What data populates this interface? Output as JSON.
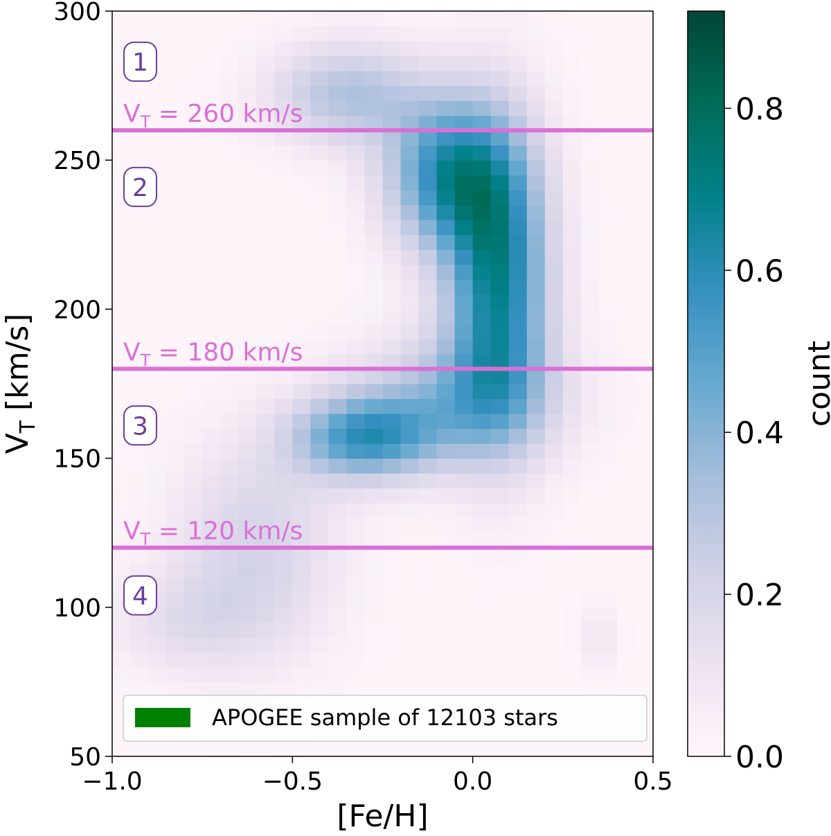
{
  "chart_data": {
    "type": "heatmap",
    "title": "",
    "xlabel": "[Fe/H]",
    "ylabel": "V_T [km/s]",
    "ylabel_main": "V",
    "ylabel_sub": "T",
    "ylabel_unit": " [km/s]",
    "xlim": [
      -1.0,
      0.5
    ],
    "ylim": [
      50,
      300
    ],
    "xticks": [
      -1.0,
      -0.5,
      0.0,
      0.5
    ],
    "xtick_labels": [
      "−1.0",
      "−0.5",
      "0.0",
      "0.5"
    ],
    "yticks": [
      50,
      100,
      150,
      200,
      250,
      300
    ],
    "ytick_labels": [
      "50",
      "100",
      "150",
      "200",
      "250",
      "300"
    ],
    "colorbar": {
      "label": "count",
      "range": [
        0.0,
        0.92
      ],
      "ticks": [
        0.0,
        0.2,
        0.4,
        0.6,
        0.8
      ],
      "tick_labels": [
        "0.0",
        "0.2",
        "0.4",
        "0.6",
        "0.8"
      ],
      "colormap": [
        "#fff7fb",
        "#ece2f0",
        "#d0d1e6",
        "#a6bddb",
        "#67a9cf",
        "#3690c0",
        "#02818a",
        "#016c59",
        "#014636"
      ]
    },
    "grid": false,
    "bin_width_feh": 0.05,
    "bin_height_vt": 5,
    "density_blobs": [
      {
        "feh": 0.07,
        "vt": 210,
        "sx": 0.1,
        "sy": 35,
        "amp": 0.65
      },
      {
        "feh": -0.07,
        "vt": 245,
        "sx": 0.12,
        "sy": 18,
        "amp": 0.55
      },
      {
        "feh": -0.3,
        "vt": 157,
        "sx": 0.14,
        "sy": 10,
        "amp": 0.5
      },
      {
        "feh": -0.35,
        "vt": 272,
        "sx": 0.15,
        "sy": 12,
        "amp": 0.3
      },
      {
        "feh": -0.05,
        "vt": 170,
        "sx": 0.2,
        "sy": 15,
        "amp": 0.3
      },
      {
        "feh": -0.6,
        "vt": 120,
        "sx": 0.16,
        "sy": 25,
        "amp": 0.2
      },
      {
        "feh": -0.8,
        "vt": 95,
        "sx": 0.15,
        "sy": 12,
        "amp": 0.12
      },
      {
        "feh": 0.35,
        "vt": 90,
        "sx": 0.04,
        "sy": 8,
        "amp": 0.08
      }
    ],
    "reference_lines": [
      {
        "vt": 260,
        "label_main": "V",
        "label_sub": "T",
        "label_rest": " = 260 km/s",
        "color": "#da70d6"
      },
      {
        "vt": 180,
        "label_main": "V",
        "label_sub": "T",
        "label_rest": " = 180 km/s",
        "color": "#da70d6"
      },
      {
        "vt": 120,
        "label_main": "V",
        "label_sub": "T",
        "label_rest": " = 120 km/s",
        "color": "#da70d6"
      }
    ],
    "regions": [
      {
        "label": "1",
        "vt": 283
      },
      {
        "label": "2",
        "vt": 241
      },
      {
        "label": "3",
        "vt": 161
      },
      {
        "label": "4",
        "vt": 104
      }
    ],
    "legend": {
      "placement": "lower-right",
      "entries": [
        {
          "label": "APOGEE sample of 12103 stars",
          "color": "#008000"
        }
      ]
    },
    "colors": {
      "region_label": "#6a3d9a",
      "line": "#da70d6"
    }
  }
}
